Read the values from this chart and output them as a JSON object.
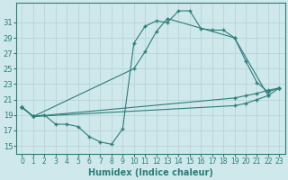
{
  "xlabel": "Humidex (Indice chaleur)",
  "background_color": "#cee8ec",
  "grid_color": "#b8d4d8",
  "line_color": "#2d7d78",
  "x_ticks": [
    0,
    1,
    2,
    3,
    4,
    5,
    6,
    7,
    8,
    9,
    10,
    11,
    12,
    13,
    14,
    15,
    16,
    17,
    18,
    19,
    20,
    21,
    22,
    23
  ],
  "y_ticks": [
    15,
    17,
    19,
    21,
    23,
    25,
    27,
    29,
    31
  ],
  "ylim": [
    14.0,
    33.5
  ],
  "xlim": [
    -0.5,
    23.5
  ],
  "series": [
    {
      "x": [
        0,
        1,
        2,
        3,
        4,
        5,
        6,
        7,
        8,
        9,
        10,
        11,
        12,
        13,
        14,
        15,
        16,
        17,
        18,
        19,
        22
      ],
      "y": [
        20.0,
        18.8,
        19.0,
        17.8,
        17.8,
        17.5,
        16.2,
        15.5,
        15.2,
        17.2,
        28.3,
        30.5,
        31.2,
        31.0,
        32.5,
        32.5,
        30.2,
        30.0,
        30.0,
        29.0,
        21.5
      ]
    },
    {
      "x": [
        0,
        1,
        10,
        11,
        12,
        13,
        19,
        20,
        21,
        22,
        23
      ],
      "y": [
        20.0,
        18.8,
        25.0,
        27.2,
        29.8,
        31.5,
        29.0,
        26.0,
        23.2,
        22.0,
        22.5
      ]
    },
    {
      "x": [
        0,
        1,
        19,
        20,
        21,
        22,
        23
      ],
      "y": [
        20.0,
        18.8,
        21.2,
        21.5,
        21.8,
        22.2,
        22.5
      ]
    },
    {
      "x": [
        0,
        1,
        19,
        20,
        21,
        22,
        23
      ],
      "y": [
        20.0,
        18.8,
        20.2,
        20.5,
        21.0,
        21.5,
        22.5
      ]
    }
  ]
}
